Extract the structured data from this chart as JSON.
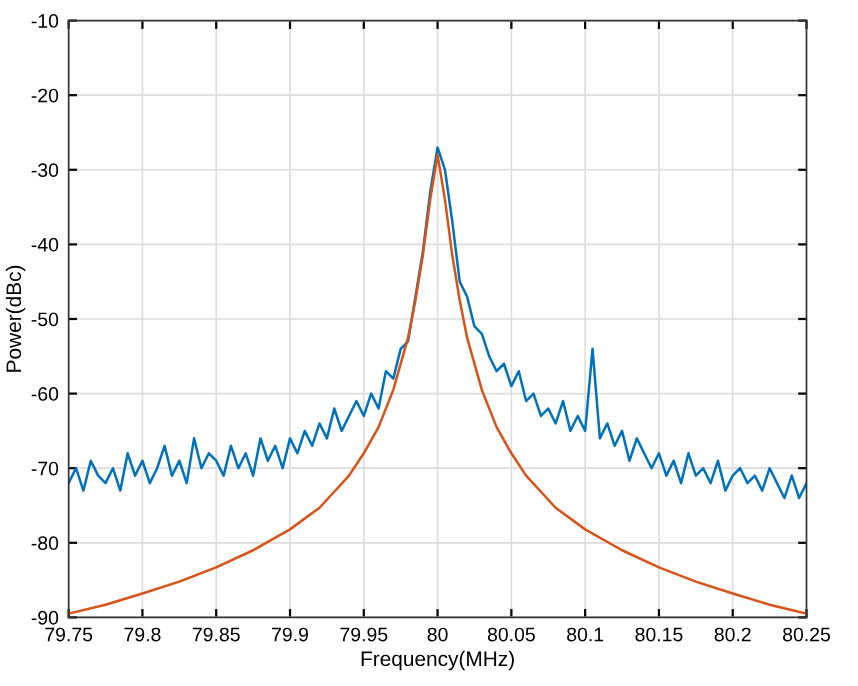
{
  "chart_data": {
    "type": "line",
    "xlabel": "Frequency(MHz)",
    "ylabel": "Power(dBc)",
    "xlim": [
      79.75,
      80.25
    ],
    "xticks": [
      79.75,
      79.8,
      79.85,
      79.9,
      79.95,
      80,
      80.05,
      80.1,
      80.15,
      80.2,
      80.25
    ],
    "ylim": [
      -90,
      -10
    ],
    "yticks": [
      -90,
      -80,
      -70,
      -60,
      -50,
      -40,
      -30,
      -20,
      -10
    ],
    "grid": true,
    "legend": false,
    "series": [
      {
        "color": "#0072bd",
        "x": [
          79.75,
          79.755,
          79.76,
          79.765,
          79.77,
          79.775,
          79.78,
          79.785,
          79.79,
          79.795,
          79.8,
          79.805,
          79.81,
          79.815,
          79.82,
          79.825,
          79.83,
          79.835,
          79.84,
          79.845,
          79.85,
          79.855,
          79.86,
          79.865,
          79.87,
          79.875,
          79.88,
          79.885,
          79.89,
          79.895,
          79.9,
          79.905,
          79.91,
          79.915,
          79.92,
          79.925,
          79.93,
          79.935,
          79.94,
          79.945,
          79.95,
          79.955,
          79.96,
          79.965,
          79.97,
          79.975,
          79.98,
          79.985,
          79.99,
          79.995,
          80,
          80.005,
          80.01,
          80.015,
          80.02,
          80.025,
          80.03,
          80.035,
          80.04,
          80.045,
          80.05,
          80.055,
          80.06,
          80.065,
          80.07,
          80.075,
          80.08,
          80.085,
          80.09,
          80.095,
          80.1,
          80.105,
          80.11,
          80.115,
          80.12,
          80.125,
          80.13,
          80.135,
          80.14,
          80.145,
          80.15,
          80.155,
          80.16,
          80.165,
          80.17,
          80.175,
          80.18,
          80.185,
          80.19,
          80.195,
          80.2,
          80.205,
          80.21,
          80.215,
          80.22,
          80.225,
          80.23,
          80.235,
          80.24,
          80.245,
          80.25
        ],
        "values": [
          -72,
          -70,
          -73,
          -69,
          -71,
          -72,
          -70,
          -73,
          -68,
          -71,
          -69,
          -72,
          -70,
          -67,
          -71,
          -69,
          -72,
          -66,
          -70,
          -68,
          -69,
          -71,
          -67,
          -70,
          -68,
          -71,
          -66,
          -69,
          -67,
          -70,
          -66,
          -68,
          -65,
          -67,
          -64,
          -66,
          -62,
          -65,
          -63,
          -61,
          -63,
          -60,
          -62,
          -57,
          -58,
          -54,
          -53,
          -47,
          -41,
          -33,
          -27,
          -30,
          -37,
          -45,
          -47,
          -51,
          -52,
          -55,
          -57,
          -56,
          -59,
          -57,
          -61,
          -60,
          -63,
          -62,
          -64,
          -61,
          -65,
          -63,
          -65,
          -54,
          -66,
          -64,
          -67,
          -65,
          -69,
          -66,
          -68,
          -70,
          -68,
          -71,
          -69,
          -72,
          -68,
          -71,
          -70,
          -72,
          -69,
          -73,
          -71,
          -70,
          -72,
          -71,
          -73,
          -70,
          -72,
          -74,
          -71,
          -74,
          -72
        ]
      },
      {
        "color": "#d95319",
        "x": [
          79.75,
          79.775,
          79.8,
          79.825,
          79.85,
          79.875,
          79.9,
          79.92,
          79.94,
          79.95,
          79.96,
          79.97,
          79.98,
          79.985,
          79.99,
          79.995,
          80,
          80.005,
          80.01,
          80.015,
          80.02,
          80.03,
          80.04,
          80.05,
          80.06,
          80.08,
          80.1,
          80.125,
          80.15,
          80.175,
          80.2,
          80.225,
          80.25
        ],
        "values": [
          -89.5,
          -88.3,
          -86.8,
          -85.2,
          -83.3,
          -81,
          -78.2,
          -75.3,
          -71,
          -68,
          -64.5,
          -59.5,
          -52.5,
          -47.5,
          -41.5,
          -34,
          -28,
          -34,
          -41.5,
          -47.5,
          -52.5,
          -59.5,
          -64.5,
          -68,
          -71,
          -75.3,
          -78.2,
          -81,
          -83.3,
          -85.2,
          -86.8,
          -88.3,
          -89.5
        ]
      }
    ]
  }
}
